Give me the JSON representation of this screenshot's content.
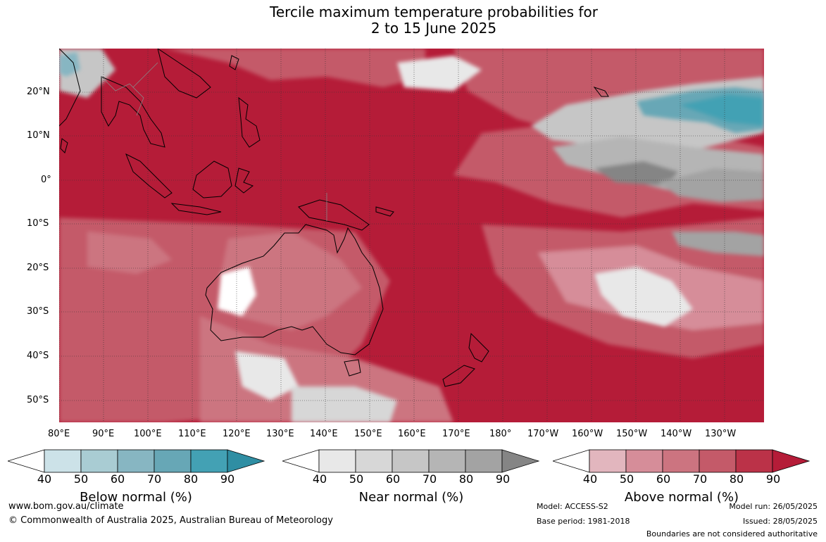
{
  "title": {
    "line1": "Tercile maximum temperature probabilities for",
    "line2": "2 to 15 June 2025"
  },
  "map": {
    "lat_labels": [
      "20°N",
      "10°N",
      "0°",
      "10°S",
      "20°S",
      "30°S",
      "40°S",
      "50°S"
    ],
    "lon_labels": [
      "80°E",
      "90°E",
      "100°E",
      "110°E",
      "120°E",
      "130°E",
      "140°E",
      "150°E",
      "160°E",
      "170°E",
      "180°",
      "170°W",
      "160°W",
      "150°W",
      "140°W",
      "130°W"
    ]
  },
  "legends": {
    "ticks": [
      "40",
      "50",
      "60",
      "70",
      "80",
      "90"
    ],
    "below": {
      "label": "Below normal (%)",
      "colors": [
        "#ffffff",
        "#cce2e8",
        "#a9ccd3",
        "#87b6c2",
        "#67a7b6",
        "#43a1b4",
        "#2f8ea3"
      ]
    },
    "near": {
      "label": "Near normal (%)",
      "colors": [
        "#ffffff",
        "#e8e8e8",
        "#d7d7d7",
        "#c6c6c6",
        "#b5b5b5",
        "#a3a3a3",
        "#858585"
      ]
    },
    "above": {
      "label": "Above normal (%)",
      "colors": [
        "#ffffff",
        "#e2b6be",
        "#d68d99",
        "#cc7480",
        "#c45a69",
        "#bb3248",
        "#b51c38"
      ]
    }
  },
  "footer": {
    "url": "www.bom.gov.au/climate",
    "copyright": "© Commonwealth of Australia 2025, Australian Bureau of Meteorology",
    "model": "Model: ACCESS-S2",
    "base_period": "Base period: 1981-2018",
    "model_run": "Model run: 26/05/2025",
    "issued": "Issued: 28/05/2025",
    "disclaimer": "Boundaries are not considered authoritative"
  }
}
